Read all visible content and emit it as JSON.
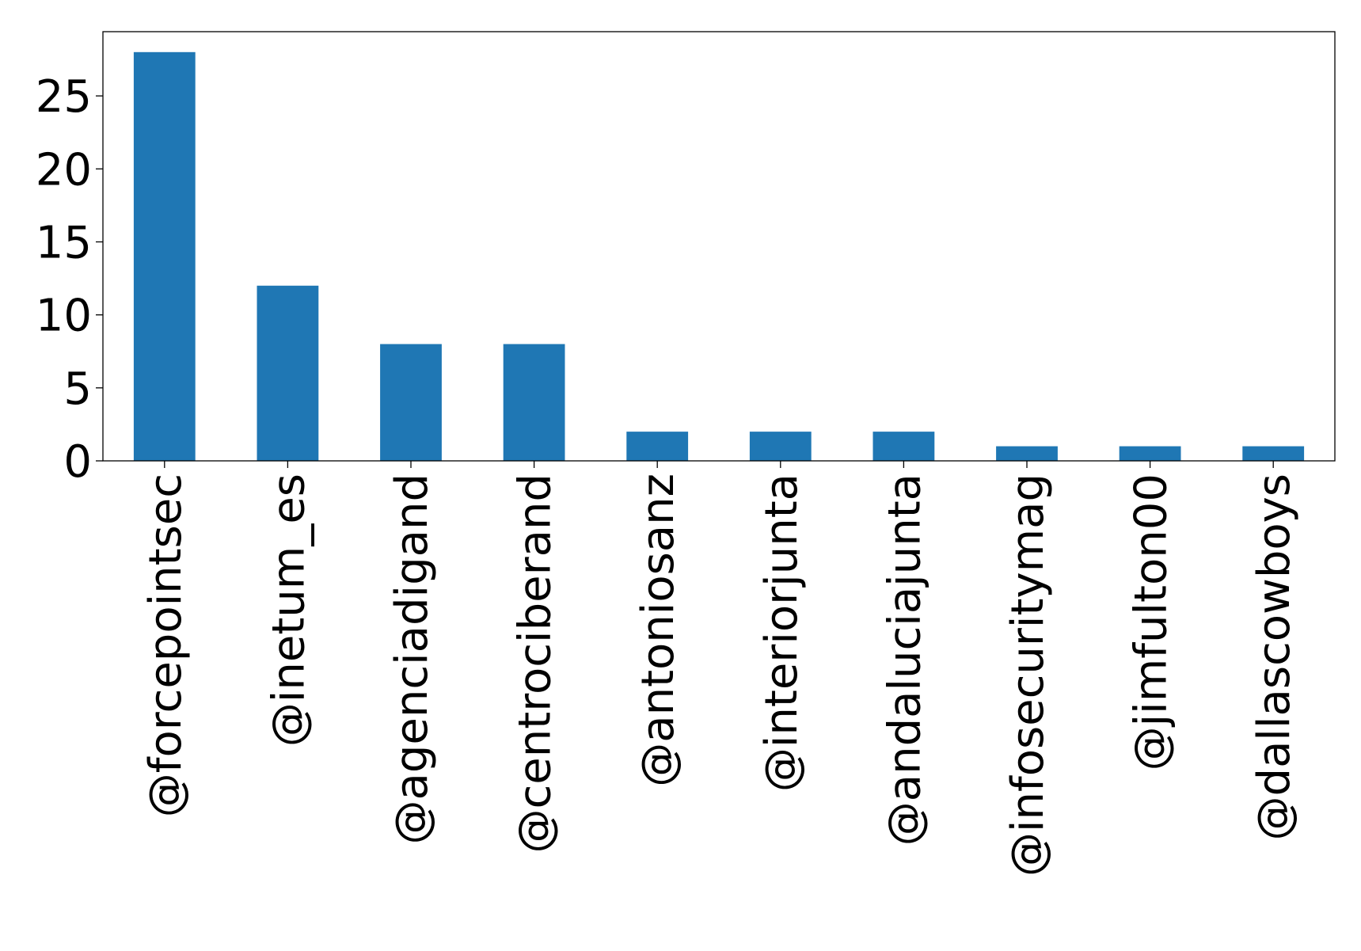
{
  "chart_data": {
    "type": "bar",
    "title": "",
    "xlabel": "",
    "ylabel": "",
    "categories": [
      "@forcepointsec",
      "@inetum_es",
      "@agenciadigand",
      "@centrociberand",
      "@antoniosanz",
      "@interiorjunta",
      "@andaluciajunta",
      "@infosecuritymag",
      "@jimfulton00",
      "@dallascowboys"
    ],
    "values": [
      28,
      12,
      8,
      8,
      2,
      2,
      2,
      1,
      1,
      1
    ],
    "ylim": [
      0,
      29.4
    ],
    "yticks": [
      0,
      5,
      10,
      15,
      20,
      25
    ],
    "grid": false,
    "legend": "none",
    "bar_color": "#1f77b4"
  }
}
